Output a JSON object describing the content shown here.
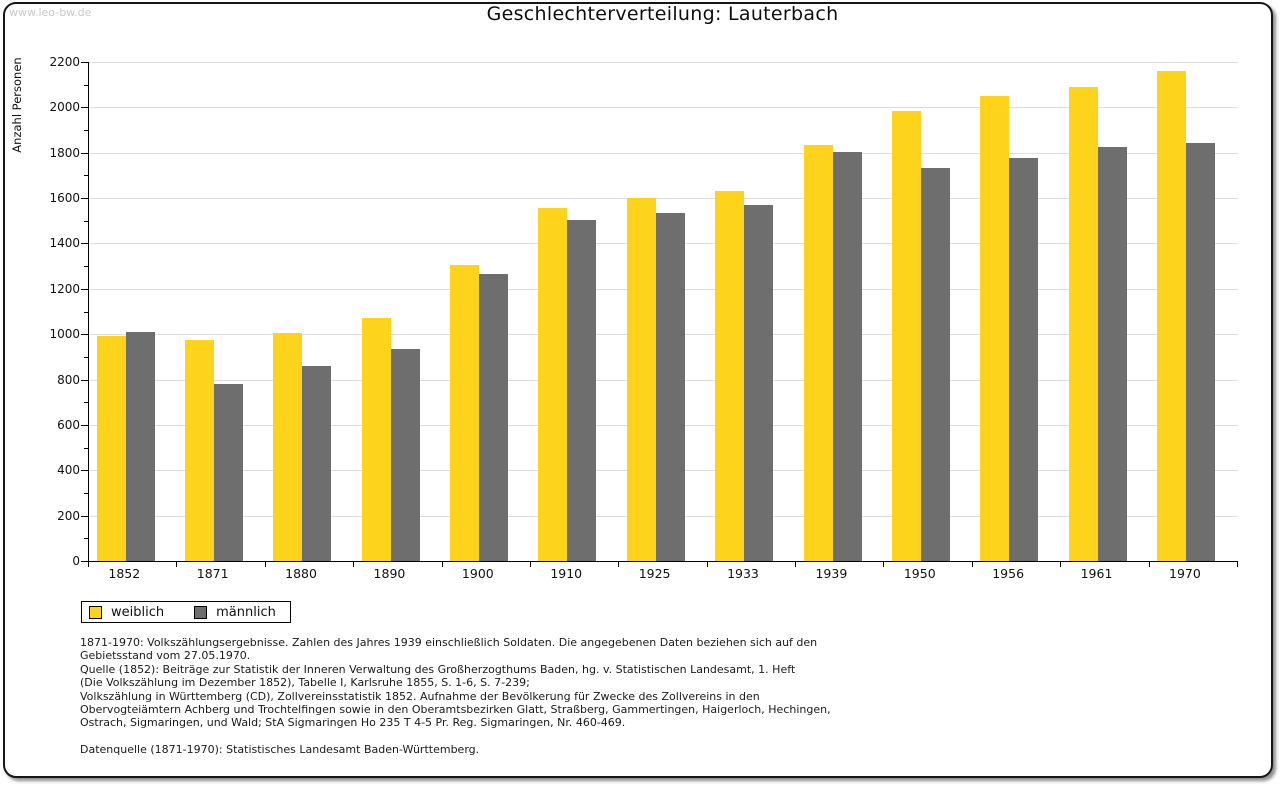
{
  "watermark": "www.leo-bw.de",
  "title": "Geschlechterverteilung: Lauterbach",
  "colors": {
    "weiblich": "#fdd31c",
    "maennlich": "#6e6e6e",
    "gridline": "#dedede",
    "axis": "#000000",
    "watermark": "#c9c9c9"
  },
  "chart_data": {
    "type": "bar",
    "title": "Geschlechterverteilung: Lauterbach",
    "xlabel": "",
    "ylabel": "Anzahl Personen",
    "categories": [
      "1852",
      "1871",
      "1880",
      "1890",
      "1900",
      "1910",
      "1925",
      "1933",
      "1939",
      "1950",
      "1956",
      "1961",
      "1970"
    ],
    "series": [
      {
        "name": "weiblich",
        "color": "#fdd31c",
        "values": [
          990,
          975,
          1005,
          1070,
          1305,
          1555,
          1600,
          1630,
          1835,
          1985,
          2050,
          2090,
          2160
        ]
      },
      {
        "name": "männlich",
        "color": "#6e6e6e",
        "values": [
          1010,
          780,
          860,
          935,
          1265,
          1505,
          1535,
          1570,
          1805,
          1735,
          1775,
          1825,
          1845
        ]
      }
    ],
    "ylim": [
      0,
      2200
    ],
    "ytick_step": 200,
    "yminor_step": 100,
    "grid": true,
    "legend_position": "bottom-left"
  },
  "footnotes": {
    "lines": [
      "1871-1970: Volkszählungsergebnisse. Zahlen des Jahres 1939 einschließlich Soldaten. Die angegebenen Daten beziehen sich auf den",
      "Gebietsstand vom 27.05.1970.",
      "Quelle (1852): Beiträge zur Statistik der Inneren Verwaltung des Großherzogthums Baden, hg. v. Statistischen Landesamt, 1. Heft",
      "(Die Volkszählung im Dezember 1852), Tabelle I, Karlsruhe 1855, S. 1-6, S. 7-239;",
      "Volkszählung in Württemberg (CD), Zollvereinsstatistik 1852. Aufnahme der Bevölkerung für Zwecke des Zollvereins in den",
      "Obervogteiämtern Achberg und Trochtelfingen sowie in den Oberamtsbezirken Glatt, Straßberg, Gammertingen, Haigerloch, Hechingen,",
      "Ostrach, Sigmaringen, und Wald; StA Sigmaringen Ho 235 T 4-5 Pr. Reg. Sigmaringen, Nr. 460-469."
    ],
    "datasource_line": "Datenquelle (1871-1970): Statistisches Landesamt Baden-Württemberg."
  }
}
